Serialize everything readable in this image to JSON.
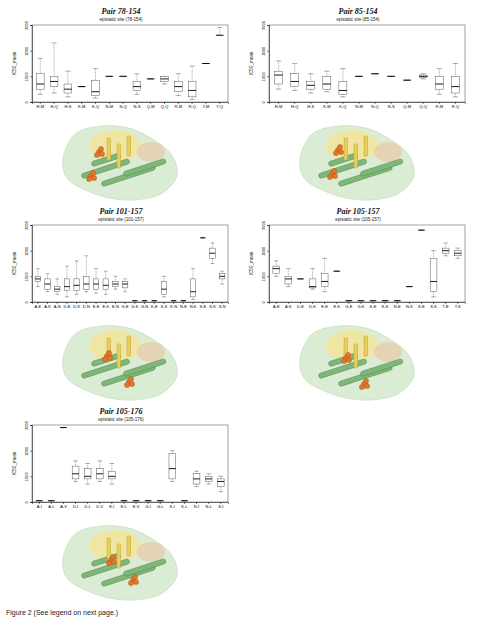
{
  "chart_data": [
    {
      "type": "box",
      "title": "Pair 78-154",
      "subtitle": "epistatic site (78-154)",
      "y_label": "IC50_mean",
      "categories": [
        "H-M",
        "H-Q",
        "H-S",
        "K-M",
        "K-Q",
        "N-M",
        "N-Q",
        "N-S",
        "Q-M",
        "Q-Q",
        "R-M",
        "R-Q",
        "Y-M",
        "Y-Q"
      ],
      "min": [
        300,
        350,
        200,
        600,
        150,
        1000,
        1000,
        300,
        900,
        700,
        250,
        100,
        1500,
        2600
      ],
      "q1": [
        500,
        600,
        350,
        600,
        250,
        1000,
        1000,
        450,
        900,
        800,
        400,
        200,
        1500,
        2600
      ],
      "median": [
        700,
        800,
        500,
        600,
        400,
        1000,
        1000,
        600,
        900,
        900,
        600,
        450,
        1500,
        2600
      ],
      "q3": [
        1100,
        1000,
        700,
        600,
        850,
        1000,
        1000,
        800,
        900,
        1000,
        800,
        800,
        1500,
        2600
      ],
      "max": [
        1700,
        2300,
        1200,
        600,
        1300,
        1000,
        1000,
        1100,
        900,
        1000,
        1100,
        1400,
        1500,
        2900
      ],
      "ylim": [
        0,
        3000
      ],
      "yticks": [
        0,
        1000,
        2000,
        3000
      ]
    },
    {
      "type": "box",
      "title": "Pair 85-154",
      "subtitle": "epistatic site (85-154)",
      "y_label": "IC50_mean",
      "categories": [
        "H-M",
        "H-Q",
        "H-S",
        "K-M",
        "K-Q",
        "N-M",
        "N-Q",
        "N-S",
        "Q-M",
        "Q-Q",
        "R-M",
        "R-Q"
      ],
      "min": [
        500,
        450,
        350,
        400,
        200,
        1000,
        1100,
        1000,
        850,
        900,
        300,
        200
      ],
      "q1": [
        700,
        600,
        500,
        500,
        300,
        1000,
        1100,
        1000,
        850,
        950,
        500,
        350
      ],
      "median": [
        1050,
        800,
        650,
        700,
        450,
        1000,
        1100,
        1000,
        850,
        1000,
        700,
        600
      ],
      "q3": [
        1200,
        1100,
        800,
        1000,
        800,
        1000,
        1100,
        1000,
        850,
        1050,
        1000,
        1000
      ],
      "max": [
        1600,
        1500,
        1100,
        1200,
        1300,
        1000,
        1100,
        1000,
        850,
        1100,
        1300,
        1500
      ],
      "ylim": [
        0,
        3000
      ],
      "yticks": [
        0,
        1000,
        2000,
        3000
      ]
    },
    {
      "type": "box",
      "title": "Pair 101-157",
      "subtitle": "epistatic site (101-157)",
      "y_label": "IC50_mean",
      "categories": [
        "A-E",
        "A-K",
        "A-N",
        "D-E",
        "D-K",
        "D-N",
        "E-E",
        "E-K",
        "E-N",
        "G-E",
        "G-K",
        "G-N",
        "K-E",
        "K-K",
        "K-N",
        "N-E",
        "N-K",
        "S-E",
        "S-K",
        "S-N"
      ],
      "min": [
        600,
        400,
        300,
        200,
        300,
        400,
        350,
        300,
        500,
        400,
        50,
        50,
        50,
        200,
        50,
        50,
        100,
        2500,
        1500,
        700
      ],
      "q1": [
        800,
        500,
        400,
        450,
        450,
        500,
        500,
        500,
        600,
        550,
        50,
        50,
        50,
        300,
        50,
        50,
        200,
        2500,
        1700,
        900
      ],
      "median": [
        900,
        700,
        500,
        600,
        650,
        700,
        700,
        650,
        700,
        700,
        50,
        50,
        50,
        500,
        50,
        50,
        400,
        2500,
        1900,
        1000
      ],
      "q3": [
        1000,
        900,
        600,
        900,
        900,
        1000,
        900,
        900,
        800,
        800,
        50,
        50,
        50,
        800,
        50,
        50,
        900,
        2500,
        2100,
        1100
      ],
      "max": [
        1300,
        1100,
        900,
        1400,
        1600,
        1800,
        1300,
        1200,
        1000,
        900,
        50,
        50,
        50,
        1000,
        50,
        50,
        1300,
        2500,
        2300,
        1200
      ],
      "ylim": [
        0,
        3000
      ],
      "yticks": [
        0,
        1000,
        2000,
        3000
      ]
    },
    {
      "type": "box",
      "title": "Pair 105-157",
      "subtitle": "epistatic site (105-157)",
      "y_label": "IC50_mean",
      "categories": [
        "A-E",
        "A-K",
        "D-E",
        "D-K",
        "E-E",
        "E-K",
        "G-E",
        "G-K",
        "K-E",
        "K-K",
        "N-E",
        "N-K",
        "S-E",
        "S-K",
        "T-E",
        "T-K"
      ],
      "min": [
        1000,
        600,
        900,
        500,
        400,
        1200,
        50,
        50,
        50,
        50,
        50,
        600,
        2800,
        200,
        1800,
        1700
      ],
      "q1": [
        1100,
        700,
        900,
        550,
        600,
        1200,
        50,
        50,
        50,
        50,
        50,
        600,
        2800,
        400,
        1900,
        1800
      ],
      "median": [
        1300,
        900,
        900,
        600,
        800,
        1200,
        50,
        50,
        50,
        50,
        50,
        600,
        2800,
        800,
        2000,
        1900
      ],
      "q3": [
        1400,
        1000,
        900,
        900,
        1100,
        1200,
        50,
        50,
        50,
        50,
        50,
        600,
        2800,
        1700,
        2100,
        2000
      ],
      "max": [
        1600,
        1300,
        900,
        1300,
        1700,
        1200,
        50,
        50,
        50,
        50,
        50,
        600,
        2800,
        2000,
        2300,
        2100
      ],
      "ylim": [
        0,
        3000
      ],
      "yticks": [
        0,
        1000,
        2000,
        3000
      ]
    },
    {
      "type": "box",
      "title": "Pair 105-176",
      "subtitle": "epistatic site (105-176)",
      "y_label": "IC50_mean",
      "categories": [
        "A-I",
        "A-L",
        "A-V",
        "D-I",
        "D-L",
        "D-V",
        "E-I",
        "E-L",
        "E-V",
        "G-I",
        "G-L",
        "K-I",
        "K-L",
        "N-I",
        "N-L",
        "S-I"
      ],
      "min": [
        50,
        50,
        2900,
        800,
        700,
        800,
        700,
        50,
        50,
        50,
        50,
        800,
        50,
        600,
        700,
        400
      ],
      "q1": [
        50,
        50,
        2900,
        900,
        900,
        900,
        900,
        50,
        50,
        50,
        50,
        900,
        50,
        700,
        800,
        600
      ],
      "median": [
        50,
        50,
        2900,
        1100,
        1000,
        1100,
        1000,
        50,
        50,
        50,
        50,
        1300,
        50,
        900,
        900,
        800
      ],
      "q3": [
        50,
        50,
        2900,
        1400,
        1300,
        1300,
        1200,
        50,
        50,
        50,
        50,
        1900,
        50,
        1100,
        1000,
        900
      ],
      "max": [
        50,
        50,
        2900,
        1600,
        1500,
        1600,
        1500,
        50,
        50,
        50,
        50,
        2000,
        50,
        1200,
        1100,
        1000
      ],
      "ylim": [
        0,
        3000
      ],
      "yticks": [
        0,
        1000,
        2000,
        3000
      ]
    }
  ],
  "caption": "Figure 2 (See legend on next page.)"
}
